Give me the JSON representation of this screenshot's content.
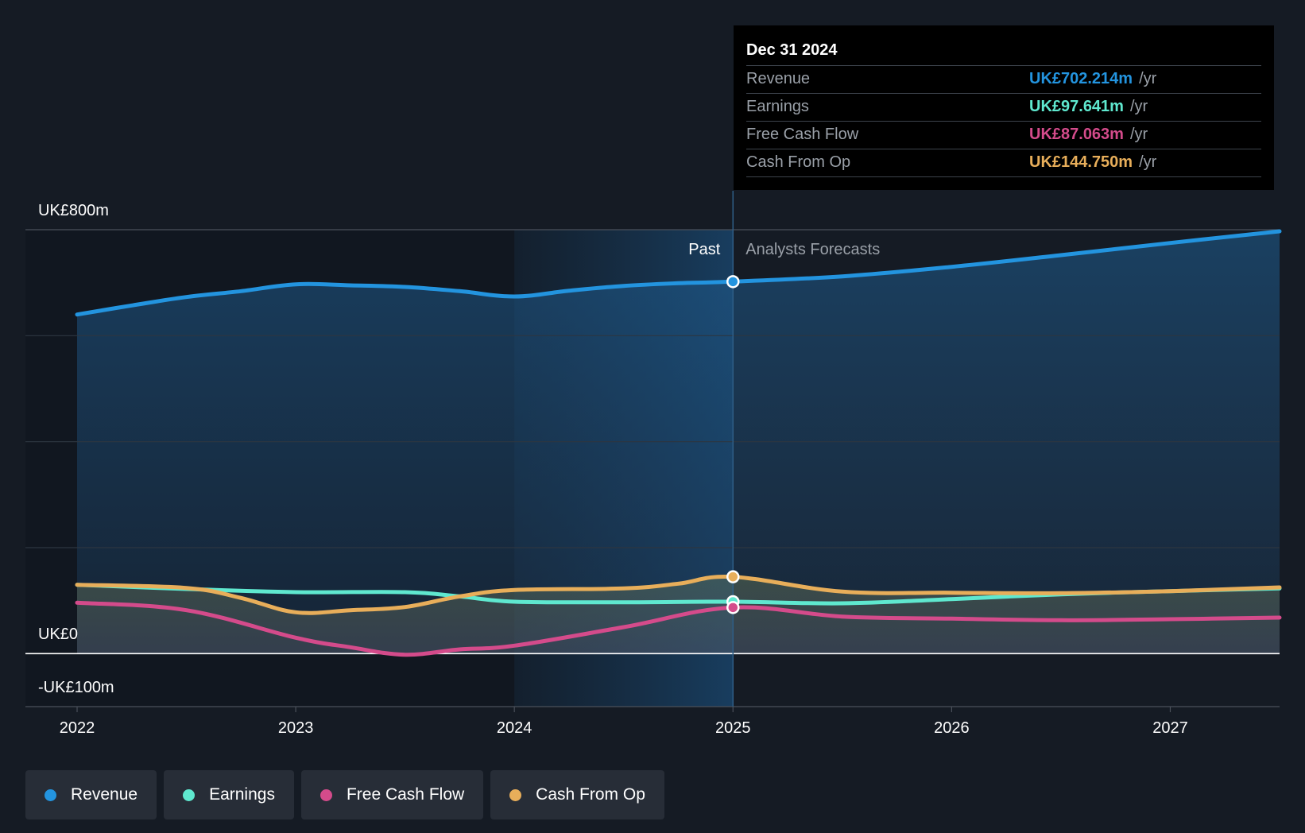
{
  "chart_data": {
    "type": "line",
    "x_ticks": [
      "2022",
      "2023",
      "2024",
      "2025",
      "2026",
      "2027"
    ],
    "y_labels": {
      "top": "UK£800m",
      "zero": "UK£0",
      "bottom": "-UK£100m"
    },
    "ylim": [
      -100,
      800
    ],
    "xlim": [
      2022.0,
      2027.5
    ],
    "past_label": "Past",
    "forecast_label": "Analysts Forecasts",
    "divider_x": 2025.0,
    "highlight_start_x": 2024.0,
    "series": [
      {
        "name": "Revenue",
        "color": "#2394df",
        "x": [
          2022.0,
          2022.25,
          2022.5,
          2022.75,
          2023.0,
          2023.25,
          2023.5,
          2023.75,
          2024.0,
          2024.25,
          2024.5,
          2024.75,
          2025.0,
          2025.5,
          2026.0,
          2026.5,
          2027.0,
          2027.5
        ],
        "y": [
          640,
          657,
          673,
          684,
          697,
          695,
          692,
          684,
          674,
          685,
          694,
          699,
          702,
          712,
          730,
          752,
          775,
          797
        ]
      },
      {
        "name": "Earnings",
        "color": "#5fe8cf",
        "x": [
          2022.0,
          2022.5,
          2023.0,
          2023.5,
          2023.75,
          2024.0,
          2024.5,
          2025.0,
          2025.5,
          2026.0,
          2026.5,
          2027.0,
          2027.5
        ],
        "y": [
          130,
          122,
          116,
          116,
          108,
          98,
          97,
          98,
          95,
          103,
          112,
          118,
          123
        ]
      },
      {
        "name": "Free Cash Flow",
        "color": "#d44b8b",
        "x": [
          2022.0,
          2022.5,
          2023.0,
          2023.25,
          2023.5,
          2023.75,
          2024.0,
          2024.5,
          2025.0,
          2025.5,
          2026.0,
          2026.5,
          2027.0,
          2027.5
        ],
        "y": [
          96,
          82,
          30,
          12,
          -2,
          8,
          15,
          50,
          87,
          70,
          66,
          63,
          65,
          68
        ]
      },
      {
        "name": "Cash From Op",
        "color": "#e8ae5a",
        "x": [
          2022.0,
          2022.5,
          2022.75,
          2023.0,
          2023.25,
          2023.5,
          2023.75,
          2024.0,
          2024.5,
          2024.75,
          2025.0,
          2025.5,
          2026.0,
          2026.5,
          2027.0,
          2027.5
        ],
        "y": [
          130,
          124,
          105,
          78,
          82,
          88,
          108,
          120,
          123,
          132,
          145,
          117,
          115,
          114,
          118,
          125
        ]
      }
    ],
    "tooltip": {
      "date": "Dec 31 2024",
      "rows": [
        {
          "label": "Revenue",
          "value": "UK£702.214m",
          "unit": "/yr",
          "color": "#2394df"
        },
        {
          "label": "Earnings",
          "value": "UK£97.641m",
          "unit": "/yr",
          "color": "#5fe8cf"
        },
        {
          "label": "Free Cash Flow",
          "value": "UK£87.063m",
          "unit": "/yr",
          "color": "#d44b8b"
        },
        {
          "label": "Cash From Op",
          "value": "UK£144.750m",
          "unit": "/yr",
          "color": "#e8ae5a"
        }
      ]
    },
    "legend": [
      {
        "label": "Revenue",
        "color": "#2394df"
      },
      {
        "label": "Earnings",
        "color": "#5fe8cf"
      },
      {
        "label": "Free Cash Flow",
        "color": "#d44b8b"
      },
      {
        "label": "Cash From Op",
        "color": "#e8ae5a"
      }
    ]
  }
}
